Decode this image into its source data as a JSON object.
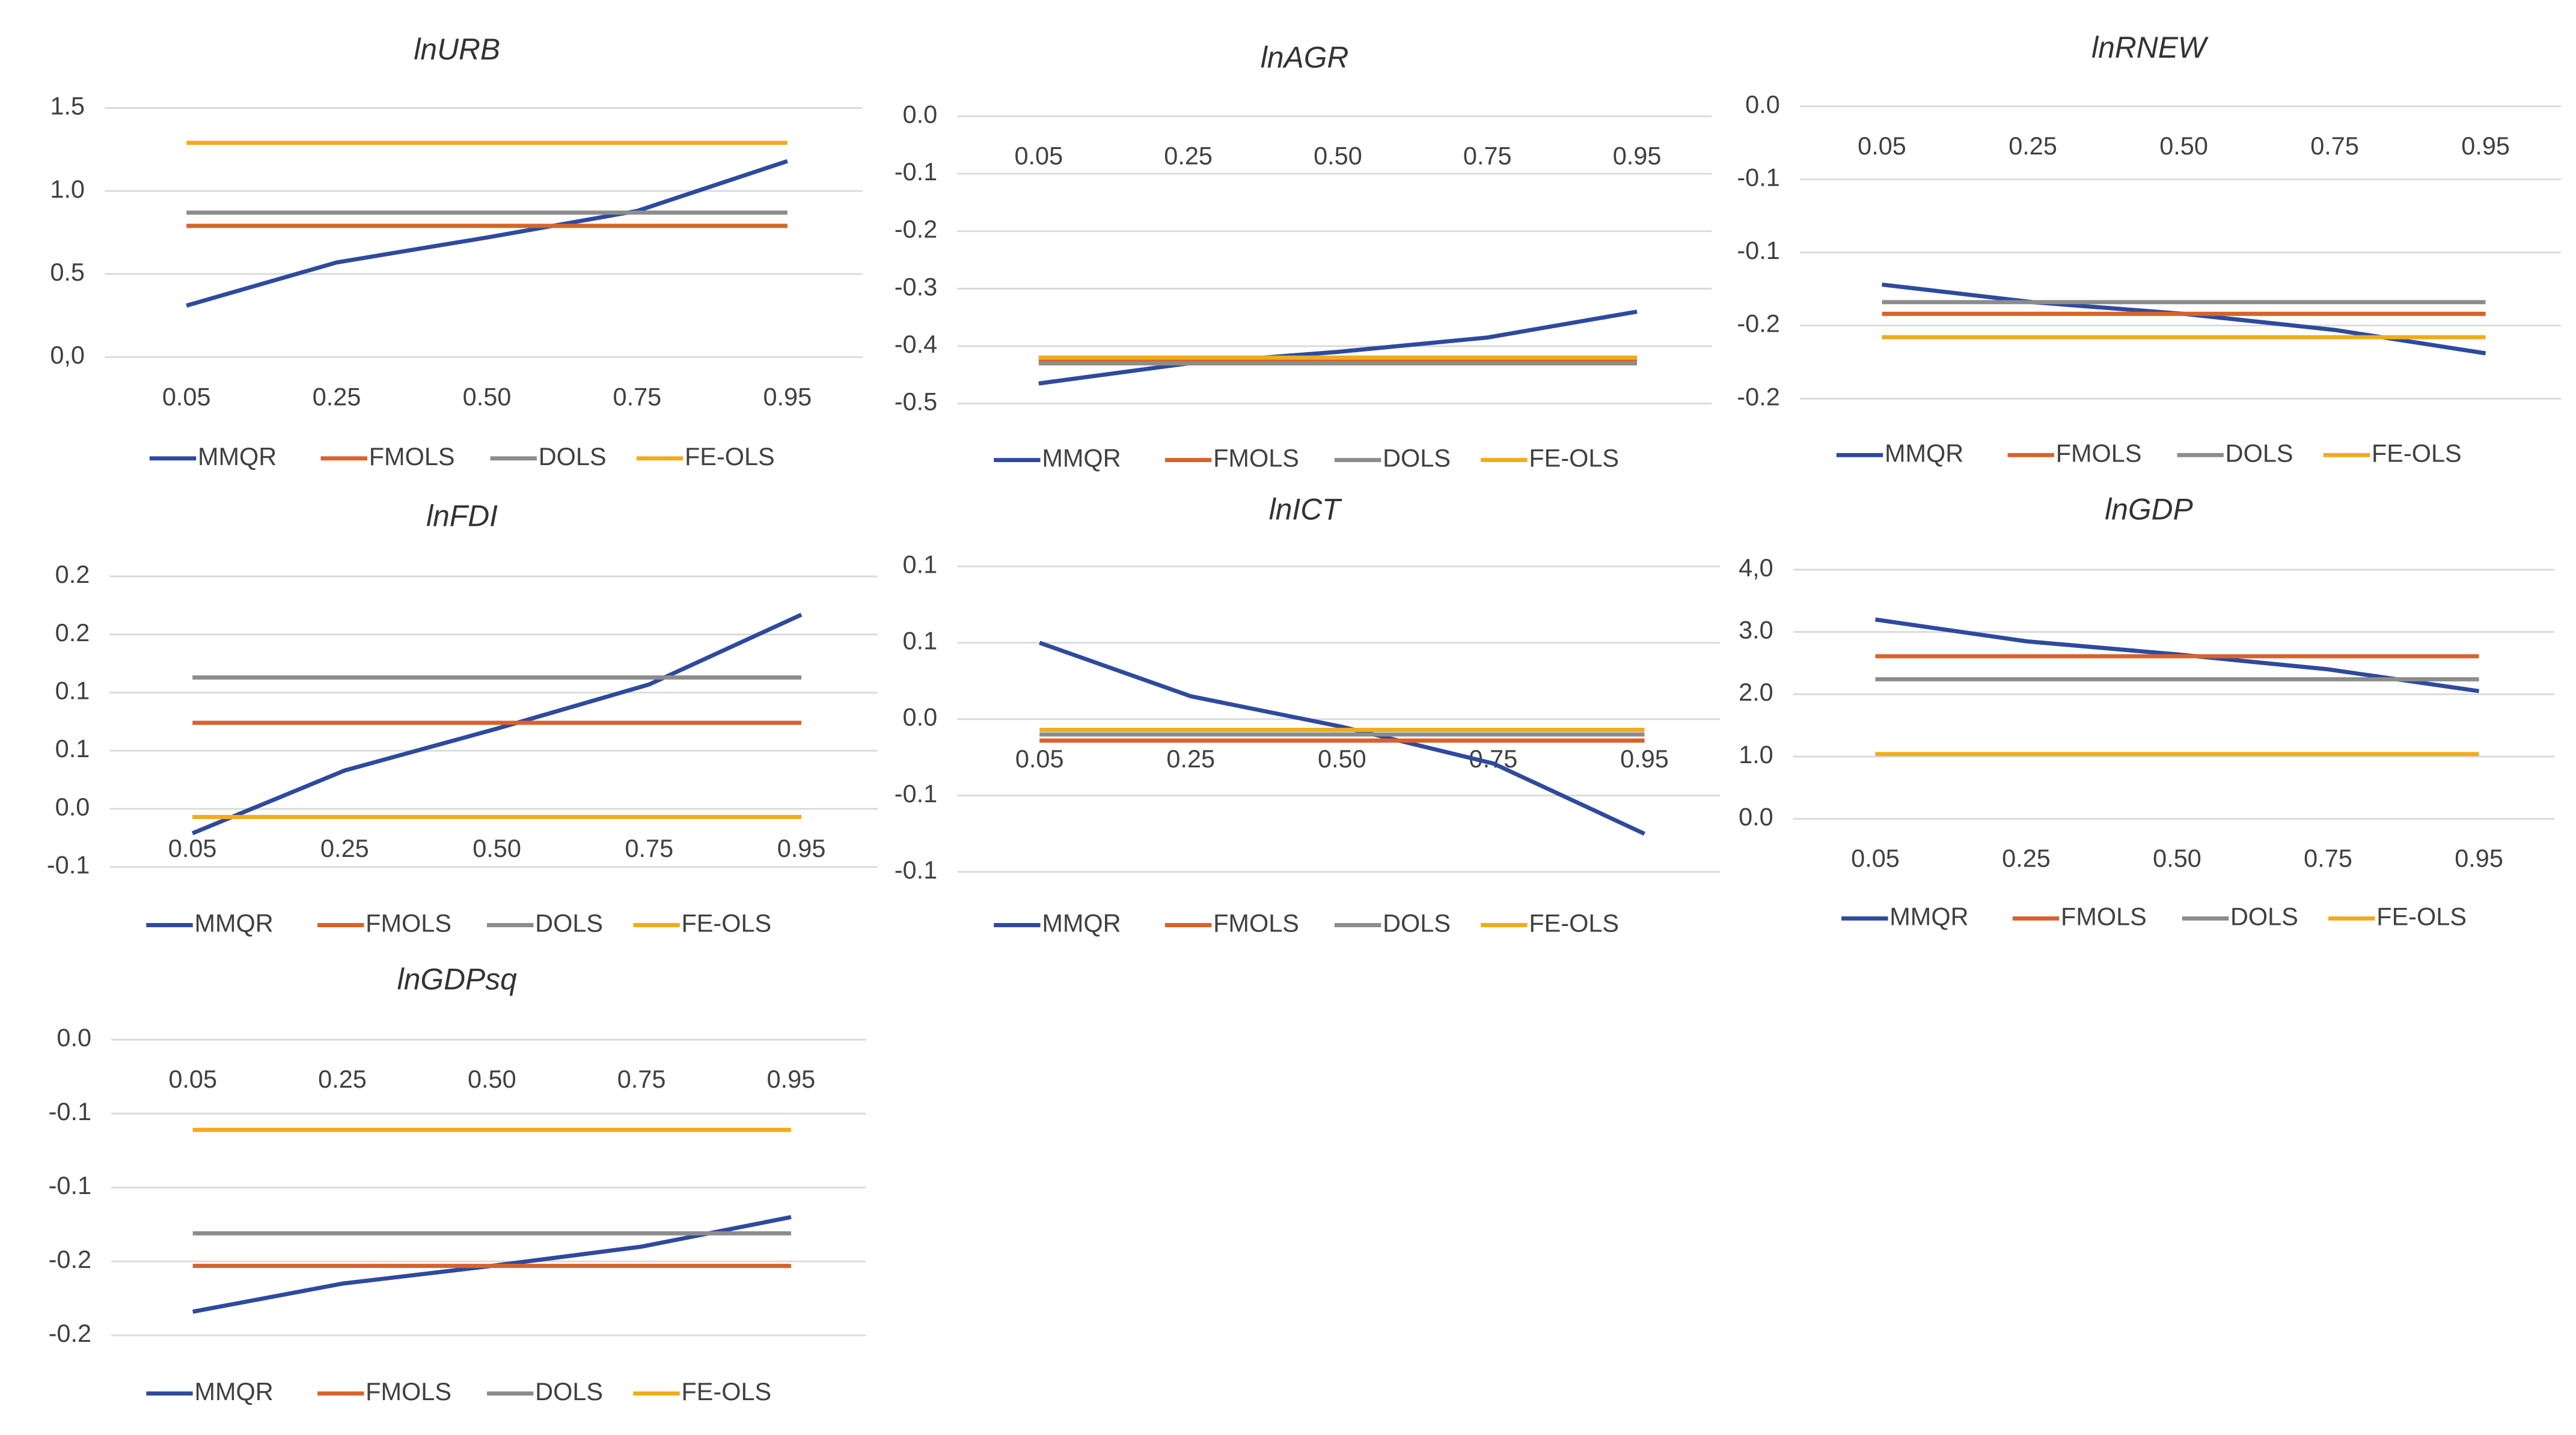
{
  "chart_data": [
    {
      "type": "line",
      "title": "lnURB",
      "categories": [
        "0.05",
        "0.25",
        "0.50",
        "0.75",
        "0.95"
      ],
      "series": [
        {
          "name": "MMQR",
          "color": "#2e4a9e",
          "values": [
            0.31,
            0.57,
            0.72,
            0.88,
            1.18
          ]
        },
        {
          "name": "FMOLS",
          "color": "#d9622b",
          "values": [
            0.79,
            0.79,
            0.79,
            0.79,
            0.79
          ]
        },
        {
          "name": "DOLS",
          "color": "#8c8c8c",
          "values": [
            0.87,
            0.87,
            0.87,
            0.87,
            0.87
          ]
        },
        {
          "name": "FE-OLS",
          "color": "#f0ac1c",
          "values": [
            1.29,
            1.29,
            1.29,
            1.29,
            1.29
          ]
        }
      ],
      "ylim": [
        0,
        1.5
      ],
      "yticks": [
        {
          "value": 0,
          "label": "0,0"
        },
        {
          "value": 0.5,
          "label": "0.5"
        },
        {
          "value": 1,
          "label": "1.0"
        },
        {
          "value": 1.5,
          "label": "1.5"
        }
      ],
      "grid": true,
      "legend": "bottom"
    },
    {
      "type": "line",
      "title": "lnAGR",
      "categories": [
        "0.05",
        "0.25",
        "0.50",
        "0.75",
        "0.95"
      ],
      "series": [
        {
          "name": "MMQR",
          "color": "#2e4a9e",
          "values": [
            -0.465,
            -0.43,
            -0.41,
            -0.385,
            -0.34
          ]
        },
        {
          "name": "FMOLS",
          "color": "#d9622b",
          "values": [
            -0.425,
            -0.425,
            -0.425,
            -0.425,
            -0.425
          ]
        },
        {
          "name": "DOLS",
          "color": "#8c8c8c",
          "values": [
            -0.43,
            -0.43,
            -0.43,
            -0.43,
            -0.43
          ]
        },
        {
          "name": "FE-OLS",
          "color": "#f0ac1c",
          "values": [
            -0.42,
            -0.42,
            -0.42,
            -0.42,
            -0.42
          ]
        }
      ],
      "ylim": [
        -0.5,
        0
      ],
      "yticks": [
        {
          "value": 0,
          "label": "0.0"
        },
        {
          "value": -0.1,
          "label": "-0.1"
        },
        {
          "value": -0.2,
          "label": "-0.2"
        },
        {
          "value": -0.3,
          "label": "-0.3"
        },
        {
          "value": -0.4,
          "label": "-0.4"
        },
        {
          "value": -0.5,
          "label": "-0.5"
        }
      ],
      "grid": true,
      "legend": "bottom"
    },
    {
      "type": "line",
      "title": "lnRNEW",
      "categories": [
        "0.05",
        "0.25",
        "0.50",
        "0.75",
        "0.95"
      ],
      "series": [
        {
          "name": "MMQR",
          "color": "#2e4a9e",
          "values": [
            -0.122,
            -0.134,
            -0.142,
            -0.153,
            -0.169
          ]
        },
        {
          "name": "FMOLS",
          "color": "#d9622b",
          "values": [
            -0.142,
            -0.142,
            -0.142,
            -0.142,
            -0.142
          ]
        },
        {
          "name": "DOLS",
          "color": "#8c8c8c",
          "values": [
            -0.134,
            -0.134,
            -0.134,
            -0.134,
            -0.134
          ]
        },
        {
          "name": "FE-OLS",
          "color": "#f0ac1c",
          "values": [
            -0.158,
            -0.158,
            -0.158,
            -0.158,
            -0.158
          ]
        }
      ],
      "ylim": [
        -0.2,
        0
      ],
      "yticks": [
        {
          "value": 0,
          "label": "0.0"
        },
        {
          "value": -0.05,
          "label": "-0.1"
        },
        {
          "value": -0.1,
          "label": "-0.1"
        },
        {
          "value": -0.15,
          "label": "-0.2"
        },
        {
          "value": -0.2,
          "label": "-0.2"
        }
      ],
      "grid": true,
      "legend": "bottom"
    },
    {
      "type": "line",
      "title": "lnFDI",
      "categories": [
        "0.05",
        "0.25",
        "0.50",
        "0.75",
        "0.95"
      ],
      "series": [
        {
          "name": "MMQR",
          "color": "#2e4a9e",
          "values": [
            -0.021,
            0.033,
            0.069,
            0.107,
            0.167
          ]
        },
        {
          "name": "FMOLS",
          "color": "#d9622b",
          "values": [
            0.074,
            0.074,
            0.074,
            0.074,
            0.074
          ]
        },
        {
          "name": "DOLS",
          "color": "#8c8c8c",
          "values": [
            0.113,
            0.113,
            0.113,
            0.113,
            0.113
          ]
        },
        {
          "name": "FE-OLS",
          "color": "#f0ac1c",
          "values": [
            -0.007,
            -0.007,
            -0.007,
            -0.007,
            -0.007
          ]
        }
      ],
      "ylim": [
        -0.05,
        0.2
      ],
      "yticks": [
        {
          "value": 0.2,
          "label": "0.2"
        },
        {
          "value": 0.15,
          "label": "0.2"
        },
        {
          "value": 0.1,
          "label": "0.1"
        },
        {
          "value": 0.05,
          "label": "0.1"
        },
        {
          "value": 0,
          "label": "0.0"
        },
        {
          "value": -0.05,
          "label": "-0.1"
        }
      ],
      "grid": true,
      "legend": "bottom"
    },
    {
      "type": "line",
      "title": "lnICT",
      "categories": [
        "0.05",
        "0.25",
        "0.50",
        "0.75",
        "0.95"
      ],
      "series": [
        {
          "name": "MMQR",
          "color": "#2e4a9e",
          "values": [
            0.05,
            0.015,
            -0.005,
            -0.029,
            -0.075
          ]
        },
        {
          "name": "FMOLS",
          "color": "#d9622b",
          "values": [
            -0.014,
            -0.014,
            -0.014,
            -0.014,
            -0.014
          ]
        },
        {
          "name": "DOLS",
          "color": "#8c8c8c",
          "values": [
            -0.01,
            -0.01,
            -0.01,
            -0.01,
            -0.01
          ]
        },
        {
          "name": "FE-OLS",
          "color": "#f0ac1c",
          "values": [
            -0.007,
            -0.007,
            -0.007,
            -0.007,
            -0.007
          ]
        }
      ],
      "ylim": [
        -0.1,
        0.1
      ],
      "yticks": [
        {
          "value": 0.1,
          "label": "0.1"
        },
        {
          "value": 0.05,
          "label": "0.1"
        },
        {
          "value": 0,
          "label": "0.0"
        },
        {
          "value": -0.05,
          "label": "-0.1"
        },
        {
          "value": -0.1,
          "label": "-0.1"
        }
      ],
      "grid": true,
      "legend": "bottom"
    },
    {
      "type": "line",
      "title": "lnGDP",
      "categories": [
        "0.05",
        "0.25",
        "0.50",
        "0.75",
        "0.95"
      ],
      "series": [
        {
          "name": "MMQR",
          "color": "#2e4a9e",
          "values": [
            3.2,
            2.85,
            2.64,
            2.4,
            2.05
          ]
        },
        {
          "name": "FMOLS",
          "color": "#d9622b",
          "values": [
            2.61,
            2.61,
            2.61,
            2.61,
            2.61
          ]
        },
        {
          "name": "DOLS",
          "color": "#8c8c8c",
          "values": [
            2.24,
            2.24,
            2.24,
            2.24,
            2.24
          ]
        },
        {
          "name": "FE-OLS",
          "color": "#f0ac1c",
          "values": [
            1.04,
            1.04,
            1.04,
            1.04,
            1.04
          ]
        }
      ],
      "ylim": [
        0,
        4
      ],
      "yticks": [
        {
          "value": 4,
          "label": "4,0"
        },
        {
          "value": 3,
          "label": "3.0"
        },
        {
          "value": 2,
          "label": "2.0"
        },
        {
          "value": 1,
          "label": "1.0"
        },
        {
          "value": 0,
          "label": "0.0"
        }
      ],
      "grid": true,
      "legend": "bottom"
    },
    {
      "type": "line",
      "title": "lnGDPsq",
      "categories": [
        "0.05",
        "0.25",
        "0.50",
        "0.75",
        "0.95"
      ],
      "series": [
        {
          "name": "MMQR",
          "color": "#2e4a9e",
          "values": [
            -0.184,
            -0.165,
            -0.153,
            -0.14,
            -0.12
          ]
        },
        {
          "name": "FMOLS",
          "color": "#d9622b",
          "values": [
            -0.153,
            -0.153,
            -0.153,
            -0.153,
            -0.153
          ]
        },
        {
          "name": "DOLS",
          "color": "#8c8c8c",
          "values": [
            -0.131,
            -0.131,
            -0.131,
            -0.131,
            -0.131
          ]
        },
        {
          "name": "FE-OLS",
          "color": "#f0ac1c",
          "values": [
            -0.061,
            -0.061,
            -0.061,
            -0.061,
            -0.061
          ]
        }
      ],
      "ylim": [
        -0.2,
        0
      ],
      "yticks": [
        {
          "value": 0,
          "label": "0.0"
        },
        {
          "value": -0.05,
          "label": "-0.1"
        },
        {
          "value": -0.1,
          "label": "-0.1"
        },
        {
          "value": -0.15,
          "label": "-0.2"
        },
        {
          "value": -0.2,
          "label": "-0.2"
        }
      ],
      "grid": true,
      "legend": "bottom"
    }
  ]
}
